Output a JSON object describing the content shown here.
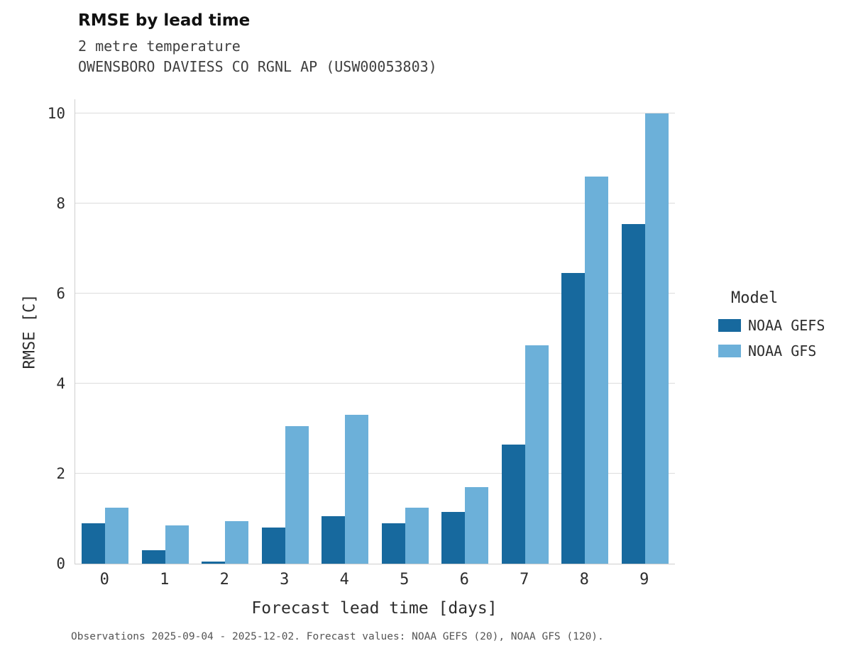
{
  "header": {
    "title": "RMSE by lead time",
    "subtitle1": "2 metre temperature",
    "subtitle2": "OWENSBORO DAVIESS CO RGNL AP (USW00053803)"
  },
  "chart_data": {
    "type": "bar",
    "title": "RMSE by lead time",
    "subtitle": "2 metre temperature — OWENSBORO DAVIESS CO RGNL AP (USW00053803)",
    "categories": [
      "0",
      "1",
      "2",
      "3",
      "4",
      "5",
      "6",
      "7",
      "8",
      "9"
    ],
    "series": [
      {
        "name": "NOAA GEFS",
        "color": "#17699e",
        "values": [
          0.9,
          0.3,
          0.05,
          0.8,
          1.05,
          0.9,
          1.15,
          2.65,
          6.45,
          7.55
        ]
      },
      {
        "name": "NOAA GFS",
        "color": "#6cb0d9",
        "values": [
          1.25,
          0.85,
          0.95,
          3.05,
          3.3,
          1.25,
          1.7,
          4.85,
          8.6,
          10.0
        ]
      }
    ],
    "xlabel": "Forecast lead time [days]",
    "ylabel": "RMSE [C]",
    "ylim": [
      0,
      10.3
    ],
    "yticks": [
      0,
      2,
      4,
      6,
      8,
      10
    ],
    "grid": true,
    "legend_title": "Model",
    "legend_position": "right"
  },
  "legend": {
    "title": "Model",
    "items": [
      {
        "label": "NOAA GEFS",
        "color": "#17699e"
      },
      {
        "label": "NOAA GFS",
        "color": "#6cb0d9"
      }
    ]
  },
  "footer": {
    "caption": "Observations 2025-09-04 - 2025-12-02. Forecast values: NOAA GEFS (20), NOAA GFS (120)."
  }
}
